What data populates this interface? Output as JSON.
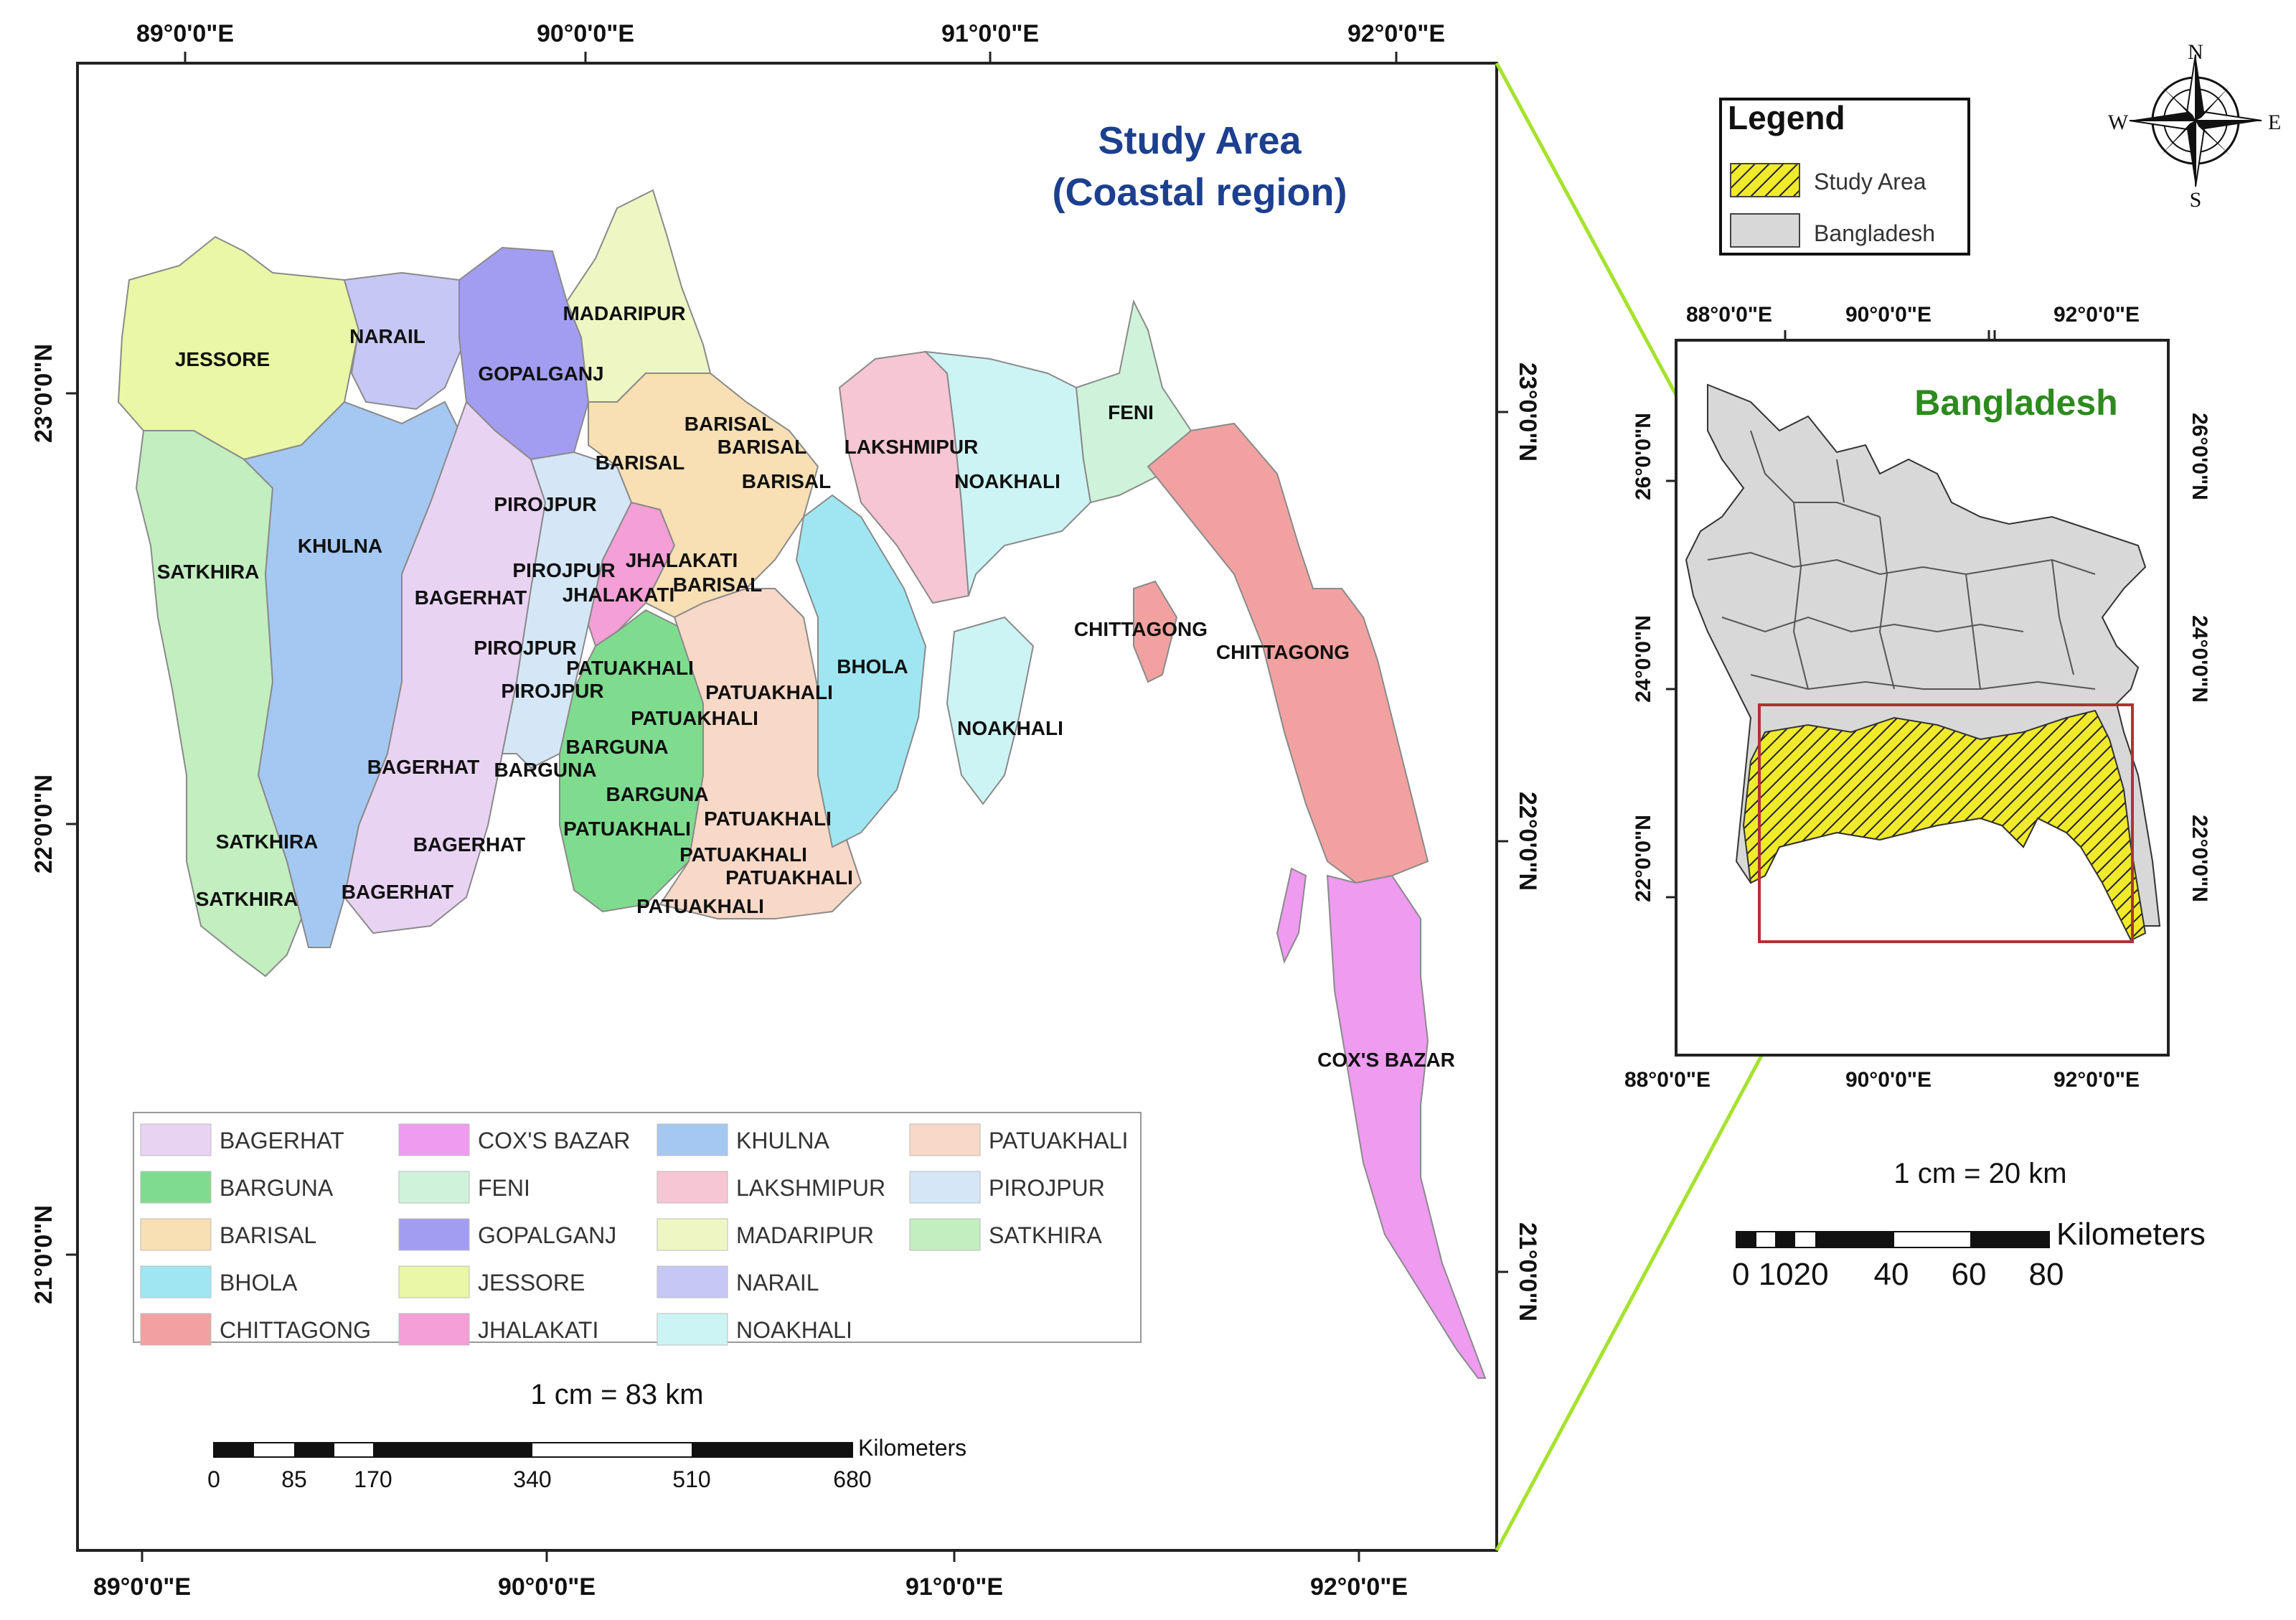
{
  "main_map": {
    "title_line1": "Study Area",
    "title_line2": "(Coastal region)",
    "top_lon_labels": [
      "89°0'0\"E",
      "90°0'0\"E",
      "91°0'0\"E",
      "92°0'0\"E"
    ],
    "bottom_lon_labels": [
      "89°0'0\"E",
      "90°0'0\"E",
      "91°0'0\"E",
      "92°0'0\"E"
    ],
    "left_lat_labels": [
      "23°0'0\"N",
      "22°0'0\"N",
      "21°0'0\"N"
    ],
    "right_lat_labels": [
      "23°0'0\"N",
      "22°0'0\"N",
      "21°0'0\"N"
    ],
    "district_labels": [
      "JESSORE",
      "NARAIL",
      "MADARIPUR",
      "GOPALGANJ",
      "BARISAL",
      "BARISAL",
      "BARISAL",
      "BARISAL",
      "LAKSHMIPUR",
      "NOAKHALI",
      "FENI",
      "SATKHIRA",
      "KHULNA",
      "PIROJPUR",
      "PIROJPUR",
      "JHALAKATI",
      "JHALAKATI",
      "BARISAL",
      "BAGERHAT",
      "PIROJPUR",
      "PIROJPUR",
      "PATUAKHALI",
      "PATUAKHALI",
      "PATUAKHALI",
      "BHOLA",
      "NOAKHALI",
      "CHITTAGONG",
      "CHITTAGONG",
      "BARGUNA",
      "BAGERHAT",
      "BARGUNA",
      "BARGUNA",
      "PATUAKHALI",
      "SATKHIRA",
      "BAGERHAT",
      "PATUAKHALI",
      "PATUAKHALI",
      "PATUAKHALI",
      "SATKHIRA",
      "BAGERHAT",
      "PATUAKHALI",
      "COX'S BAZAR"
    ],
    "legend": [
      {
        "label": "BAGERHAT",
        "color": "#e9d3f3"
      },
      {
        "label": "BARGUNA",
        "color": "#7fdc8f"
      },
      {
        "label": "BARISAL",
        "color": "#f8dfb4"
      },
      {
        "label": "BHOLA",
        "color": "#9fe6f2"
      },
      {
        "label": "CHITTAGONG",
        "color": "#f1a2a0"
      },
      {
        "label": "COX'S BAZAR",
        "color": "#ee9bf0"
      },
      {
        "label": "FENI",
        "color": "#cff3da"
      },
      {
        "label": "GOPALGANJ",
        "color": "#a39df1"
      },
      {
        "label": "JESSORE",
        "color": "#e9f7a6"
      },
      {
        "label": "JHALAKATI",
        "color": "#f49fd5"
      },
      {
        "label": "KHULNA",
        "color": "#a4c8f2"
      },
      {
        "label": "LAKSHMIPUR",
        "color": "#f6c6d5"
      },
      {
        "label": "MADARIPUR",
        "color": "#eef7c4"
      },
      {
        "label": "NARAIL",
        "color": "#c7c7f6"
      },
      {
        "label": "NOAKHALI",
        "color": "#cdf4f4"
      },
      {
        "label": "PATUAKHALI",
        "color": "#f8d8c7"
      },
      {
        "label": "PIROJPUR",
        "color": "#d5e7f7"
      },
      {
        "label": "SATKHIRA",
        "color": "#c2eec0"
      }
    ],
    "scale_text": "1 cm = 83 km",
    "scale_unit": "Kilometers",
    "scale_ticks": [
      "0",
      "85",
      "170",
      "340",
      "510",
      "680"
    ]
  },
  "inset_map": {
    "legend_title": "Legend",
    "legend_items": [
      "Study Area",
      "Bangladesh"
    ],
    "compass": {
      "n": "N",
      "s": "S",
      "e": "E",
      "w": "W"
    },
    "title": "Bangladesh",
    "top_lon_labels": [
      "88°0'0\"E",
      "90°0'0\"E",
      "92°0'0\"E"
    ],
    "bottom_lon_labels": [
      "88°0'0\"E",
      "90°0'0\"E",
      "92°0'0\"E"
    ],
    "left_lat_labels": [
      "26°0'0\"N",
      "24°0'0\"N",
      "22°0'0\"N"
    ],
    "right_lat_labels": [
      "26°0'0\"N",
      "24°0'0\"N",
      "22°0'0\"N"
    ],
    "scale_text": "1 cm = 20 km",
    "scale_unit": "Kilometers",
    "scale_ticks": [
      "0 1020",
      "40",
      "60",
      "80"
    ]
  },
  "colors": {
    "frame": "#222222",
    "connector": "#a6e22e",
    "study_area_fill": "#f1ea2b",
    "bangladesh_fill": "#d8d8d8",
    "extent_box": "#b03232",
    "title_blue": "#1c3f8f",
    "title_green": "#2d8a1e"
  }
}
